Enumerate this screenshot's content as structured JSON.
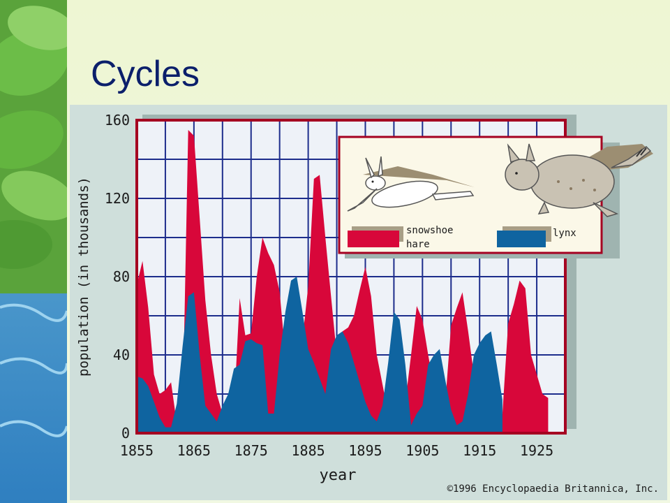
{
  "slide": {
    "title": "Cycles"
  },
  "colors": {
    "hare": "#d8073a",
    "lynx": "#0f64a0",
    "frame": "#a50021",
    "grid": "#1d2d8c",
    "plot_bg": "#eef2f8"
  },
  "legend": {
    "hare_label_line1": "snowshoe",
    "hare_label_line2": "hare",
    "lynx_label": "lynx",
    "icons": [
      "hare-icon",
      "lynx-icon"
    ]
  },
  "copyright": "©1996 Encyclopaedia Britannica, Inc.",
  "chart_data": {
    "type": "area",
    "title": "",
    "xlabel": "year",
    "ylabel": "population (in thousands)",
    "xlim": [
      1855,
      1930
    ],
    "ylim": [
      0,
      160
    ],
    "x_ticks": [
      "1855",
      "1865",
      "1875",
      "1885",
      "1895",
      "1905",
      "1915",
      "1925"
    ],
    "y_ticks": [
      "0",
      "40",
      "80",
      "120",
      "160"
    ],
    "grid": true,
    "legend_position": "top-right",
    "series": [
      {
        "name": "snowshoe hare",
        "points": [
          [
            1855,
            76
          ],
          [
            1856,
            88
          ],
          [
            1857,
            64
          ],
          [
            1858,
            30
          ],
          [
            1859,
            20
          ],
          [
            1860,
            22
          ],
          [
            1861,
            26
          ],
          [
            1862,
            5
          ],
          [
            1863,
            8
          ],
          [
            1864,
            155
          ],
          [
            1865,
            152
          ],
          [
            1866,
            110
          ],
          [
            1867,
            68
          ],
          [
            1868,
            40
          ],
          [
            1869,
            20
          ],
          [
            1870,
            10
          ],
          [
            1871,
            8
          ],
          [
            1872,
            12
          ],
          [
            1873,
            69
          ],
          [
            1874,
            50
          ],
          [
            1875,
            51
          ],
          [
            1876,
            80
          ],
          [
            1877,
            100
          ],
          [
            1878,
            92
          ],
          [
            1879,
            86
          ],
          [
            1880,
            72
          ],
          [
            1881,
            40
          ],
          [
            1882,
            10
          ],
          [
            1883,
            12
          ],
          [
            1884,
            48
          ],
          [
            1885,
            75
          ],
          [
            1886,
            130
          ],
          [
            1887,
            132
          ],
          [
            1888,
            100
          ],
          [
            1889,
            70
          ],
          [
            1890,
            40
          ],
          [
            1891,
            52
          ],
          [
            1892,
            54
          ],
          [
            1893,
            60
          ],
          [
            1894,
            73
          ],
          [
            1895,
            85
          ],
          [
            1896,
            70
          ],
          [
            1897,
            40
          ],
          [
            1898,
            25
          ],
          [
            1899,
            10
          ],
          [
            1900,
            8
          ],
          [
            1901,
            10
          ],
          [
            1902,
            16
          ],
          [
            1903,
            40
          ],
          [
            1904,
            65
          ],
          [
            1905,
            58
          ],
          [
            1906,
            40
          ],
          [
            1907,
            24
          ],
          [
            1908,
            25
          ],
          [
            1909,
            16
          ],
          [
            1910,
            55
          ],
          [
            1911,
            64
          ],
          [
            1912,
            72
          ],
          [
            1913,
            52
          ],
          [
            1914,
            30
          ],
          [
            1915,
            20
          ],
          [
            1916,
            10
          ],
          [
            1917,
            5
          ],
          [
            1918,
            4
          ],
          [
            1919,
            10
          ],
          [
            1920,
            56
          ],
          [
            1921,
            66
          ],
          [
            1922,
            78
          ],
          [
            1923,
            74
          ],
          [
            1924,
            40
          ],
          [
            1925,
            30
          ],
          [
            1926,
            20
          ],
          [
            1927,
            18
          ]
        ]
      },
      {
        "name": "lynx",
        "points": [
          [
            1855,
            29
          ],
          [
            1856,
            28
          ],
          [
            1857,
            24
          ],
          [
            1858,
            16
          ],
          [
            1859,
            8
          ],
          [
            1860,
            3
          ],
          [
            1861,
            3
          ],
          [
            1862,
            15
          ],
          [
            1863,
            44
          ],
          [
            1864,
            70
          ],
          [
            1865,
            72
          ],
          [
            1866,
            40
          ],
          [
            1867,
            14
          ],
          [
            1868,
            10
          ],
          [
            1869,
            6
          ],
          [
            1870,
            14
          ],
          [
            1871,
            20
          ],
          [
            1872,
            33
          ],
          [
            1873,
            35
          ],
          [
            1874,
            47
          ],
          [
            1875,
            48
          ],
          [
            1876,
            46
          ],
          [
            1877,
            45
          ],
          [
            1878,
            10
          ],
          [
            1879,
            10
          ],
          [
            1880,
            40
          ],
          [
            1881,
            62
          ],
          [
            1882,
            78
          ],
          [
            1883,
            80
          ],
          [
            1884,
            62
          ],
          [
            1885,
            43
          ],
          [
            1886,
            36
          ],
          [
            1887,
            28
          ],
          [
            1888,
            20
          ],
          [
            1889,
            43
          ],
          [
            1890,
            50
          ],
          [
            1891,
            52
          ],
          [
            1892,
            46
          ],
          [
            1893,
            36
          ],
          [
            1894,
            26
          ],
          [
            1895,
            16
          ],
          [
            1896,
            9
          ],
          [
            1897,
            6
          ],
          [
            1898,
            14
          ],
          [
            1899,
            36
          ],
          [
            1900,
            62
          ],
          [
            1901,
            58
          ],
          [
            1902,
            35
          ],
          [
            1903,
            4
          ],
          [
            1904,
            10
          ],
          [
            1905,
            14
          ],
          [
            1906,
            35
          ],
          [
            1907,
            40
          ],
          [
            1908,
            43
          ],
          [
            1909,
            27
          ],
          [
            1910,
            12
          ],
          [
            1911,
            4
          ],
          [
            1912,
            6
          ],
          [
            1913,
            20
          ],
          [
            1914,
            40
          ],
          [
            1915,
            46
          ],
          [
            1916,
            50
          ],
          [
            1917,
            52
          ],
          [
            1918,
            35
          ],
          [
            1919,
            17
          ]
        ]
      }
    ]
  }
}
